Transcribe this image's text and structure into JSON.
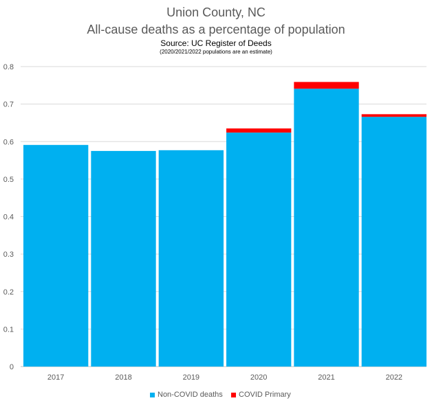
{
  "chart_data": {
    "type": "bar",
    "stacked": true,
    "title": "Union County, NC",
    "subtitle": "All-cause deaths as a percentage of population",
    "source": "Source: UC Register of Deeds",
    "note": "(2020/2021/2022 populations are an estimate)",
    "categories": [
      "2017",
      "2018",
      "2019",
      "2020",
      "2021",
      "2022"
    ],
    "series": [
      {
        "name": "Non-COVID deaths",
        "color": "#00B0F0",
        "values": [
          0.591,
          0.575,
          0.577,
          0.624,
          0.741,
          0.666
        ]
      },
      {
        "name": "COVID Primary",
        "color": "#FF0000",
        "values": [
          0,
          0,
          0,
          0.011,
          0.018,
          0.007
        ]
      }
    ],
    "ylim": [
      0,
      0.8
    ],
    "yticks": [
      "0",
      "0.1",
      "0.2",
      "0.3",
      "0.4",
      "0.5",
      "0.6",
      "0.7",
      "0.8"
    ],
    "grid": true,
    "legend": "bottom"
  }
}
